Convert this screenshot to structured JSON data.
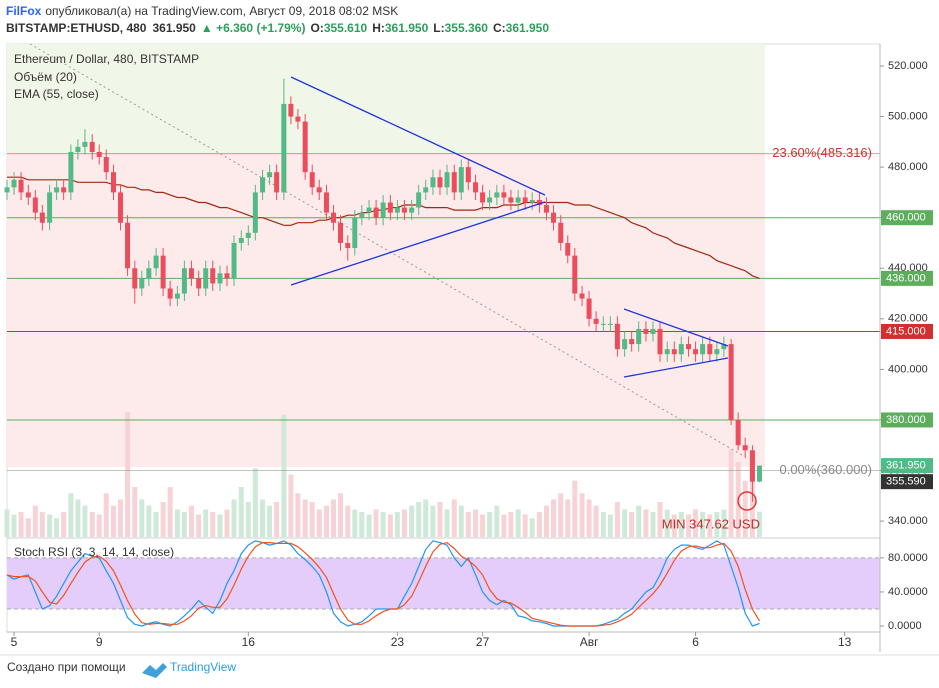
{
  "header": {
    "author": "FilFox",
    "published": "опубликовал(а) на TradingView.com, Август 09, 2018 08:02 MSK",
    "symbol": "BITSTAMP:ETHUSD, 480",
    "last": "361.950",
    "change": "▲ +6.360 (+1.79%)",
    "ohlc": [
      {
        "label": "O:",
        "value": "355.610"
      },
      {
        "label": "H:",
        "value": "361.950"
      },
      {
        "label": "L:",
        "value": "355.360"
      },
      {
        "label": "C:",
        "value": "361.950"
      }
    ]
  },
  "chart_data": [
    {
      "type": "candlestick",
      "title": "Ethereum / Dollar, 480, BITSTAMP",
      "up_color": "#53b987",
      "down_color": "#eb4d5c",
      "x": [
        4.67,
        5,
        5.33,
        5.67,
        6,
        6.33,
        6.67,
        7,
        7.33,
        7.67,
        8,
        8.33,
        8.67,
        9,
        9.33,
        9.67,
        10,
        10.33,
        10.67,
        11,
        11.33,
        11.67,
        12,
        12.33,
        12.67,
        13,
        13.33,
        13.67,
        14,
        14.33,
        14.67,
        15,
        15.33,
        15.67,
        16,
        16.33,
        16.67,
        17,
        17.33,
        17.67,
        18,
        18.33,
        18.67,
        19,
        19.33,
        19.67,
        20,
        20.33,
        20.67,
        21,
        21.33,
        21.67,
        22,
        22.33,
        22.67,
        23,
        23.33,
        23.67,
        24,
        24.33,
        24.67,
        25,
        25.33,
        25.67,
        26,
        26.33,
        26.67,
        27,
        27.33,
        27.67,
        28,
        28.33,
        28.67,
        29,
        29.33,
        29.67,
        30,
        30.33,
        30.67,
        31,
        31.33,
        31.67,
        32,
        32.33,
        32.67,
        33,
        33.33,
        33.67,
        34,
        34.33,
        34.67,
        35,
        35.33,
        35.67,
        36,
        36.33,
        36.67,
        37,
        37.33,
        37.67,
        38,
        38.33,
        38.67,
        39,
        39.33,
        39.67,
        40
      ],
      "open": [
        470,
        472,
        475,
        470,
        468,
        462,
        458,
        470,
        472,
        470,
        486,
        488,
        490,
        486,
        484,
        478,
        470,
        458,
        440,
        432,
        436,
        440,
        445,
        432,
        428,
        430,
        440,
        436,
        432,
        440,
        434,
        438,
        436,
        450,
        452,
        454,
        470,
        476,
        478,
        470,
        505,
        500,
        498,
        478,
        472,
        470,
        462,
        458,
        450,
        448,
        460,
        462,
        464,
        460,
        466,
        462,
        464,
        462,
        464,
        470,
        472,
        476,
        472,
        478,
        470,
        480,
        474,
        470,
        466,
        468,
        470,
        468,
        466,
        468,
        466,
        467,
        465,
        462,
        458,
        450,
        445,
        430,
        428,
        420,
        418,
        418,
        418,
        408,
        412,
        410,
        416,
        414,
        416,
        406,
        408,
        406,
        410,
        408,
        406,
        410,
        406,
        408,
        410,
        380,
        370,
        368,
        355.61
      ],
      "high": [
        475,
        478,
        478,
        473,
        471,
        465,
        473,
        475,
        475,
        489,
        491,
        495,
        493,
        489,
        487,
        481,
        473,
        461,
        443,
        439,
        443,
        448,
        448,
        435,
        433,
        443,
        443,
        439,
        443,
        443,
        441,
        441,
        453,
        455,
        457,
        473,
        479,
        481,
        481,
        515,
        508,
        503,
        501,
        481,
        475,
        473,
        465,
        461,
        453,
        463,
        465,
        467,
        467,
        469,
        469,
        467,
        467,
        467,
        473,
        475,
        479,
        479,
        481,
        481,
        483,
        483,
        477,
        473,
        471,
        473,
        473,
        471,
        471,
        471,
        470,
        470,
        468,
        465,
        461,
        453,
        448,
        433,
        431,
        423,
        421,
        421,
        421,
        415,
        415,
        419,
        419,
        419,
        419,
        411,
        411,
        413,
        413,
        411,
        413,
        413,
        411,
        413,
        412,
        383,
        373,
        370,
        361.95
      ],
      "low": [
        467,
        469,
        467,
        465,
        459,
        455,
        455,
        467,
        467,
        467,
        483,
        485,
        483,
        481,
        475,
        467,
        455,
        437,
        426,
        429,
        433,
        437,
        429,
        425,
        425,
        427,
        433,
        429,
        429,
        431,
        431,
        433,
        433,
        447,
        449,
        451,
        467,
        473,
        467,
        467,
        497,
        495,
        475,
        469,
        467,
        459,
        455,
        447,
        443,
        445,
        457,
        459,
        457,
        457,
        459,
        459,
        459,
        459,
        461,
        467,
        469,
        469,
        469,
        467,
        467,
        471,
        467,
        463,
        463,
        465,
        465,
        463,
        463,
        463,
        463,
        462,
        459,
        455,
        447,
        442,
        427,
        425,
        417,
        415,
        415,
        415,
        405,
        405,
        407,
        407,
        411,
        411,
        403,
        403,
        403,
        403,
        405,
        403,
        403,
        403,
        403,
        405,
        378,
        368,
        365,
        347.62,
        355.36
      ],
      "close": [
        472,
        475,
        470,
        468,
        462,
        458,
        470,
        472,
        470,
        486,
        488,
        490,
        486,
        484,
        478,
        470,
        458,
        440,
        432,
        436,
        440,
        445,
        432,
        428,
        430,
        440,
        436,
        432,
        440,
        434,
        438,
        436,
        450,
        452,
        454,
        470,
        476,
        478,
        470,
        505,
        500,
        498,
        478,
        472,
        470,
        462,
        458,
        450,
        448,
        460,
        462,
        464,
        460,
        466,
        462,
        464,
        462,
        464,
        470,
        472,
        476,
        472,
        478,
        470,
        480,
        474,
        470,
        466,
        468,
        470,
        468,
        466,
        468,
        466,
        467,
        465,
        462,
        458,
        450,
        445,
        430,
        428,
        420,
        418,
        418,
        418,
        408,
        412,
        410,
        416,
        414,
        416,
        406,
        408,
        406,
        410,
        408,
        406,
        410,
        406,
        408,
        410,
        380,
        370,
        368,
        355.61,
        361.95
      ],
      "xlim": [
        4.67,
        45.66
      ],
      "xticks": [
        5,
        9,
        16,
        23,
        27,
        {
          "value": 32,
          "label": "Авг"
        },
        {
          "value": 37,
          "label": "6"
        },
        {
          "value": 44,
          "label": "13"
        }
      ],
      "ylim": [
        333.7,
        528.7
      ],
      "yticks": [
        {
          "value": 340,
          "label": "340.000"
        },
        {
          "value": 360,
          "label": "360.000"
        },
        {
          "value": 380,
          "label": "380.000"
        },
        {
          "value": 400,
          "label": "400.000"
        },
        {
          "value": 420,
          "label": "420.000"
        },
        {
          "value": 440,
          "label": "440.000"
        },
        {
          "value": 460,
          "label": "460.000"
        },
        {
          "value": 480,
          "label": "480.000"
        },
        {
          "value": 500,
          "label": "500.000"
        },
        {
          "value": 520,
          "label": "520.000"
        }
      ],
      "volume": {
        "name": "Объём (20)",
        "ylim": [
          0,
          100
        ],
        "up_color": "#cfe9d9",
        "down_color": "#f7d3d6",
        "values": [
          22,
          18,
          20,
          15,
          25,
          20,
          18,
          15,
          20,
          35,
          30,
          25,
          20,
          18,
          35,
          25,
          30,
          100,
          40,
          30,
          25,
          20,
          28,
          40,
          22,
          20,
          25,
          18,
          22,
          20,
          18,
          22,
          30,
          40,
          28,
          55,
          30,
          25,
          28,
          98,
          50,
          35,
          30,
          28,
          22,
          25,
          30,
          35,
          25,
          22,
          20,
          18,
          22,
          20,
          18,
          20,
          22,
          25,
          28,
          30,
          25,
          28,
          22,
          30,
          25,
          20,
          22,
          18,
          20,
          25,
          18,
          20,
          22,
          18,
          15,
          20,
          25,
          30,
          35,
          30,
          45,
          35,
          30,
          25,
          20,
          18,
          28,
          22,
          20,
          25,
          22,
          20,
          28,
          22,
          18,
          20,
          18,
          22,
          20,
          18,
          20,
          22,
          70,
          60,
          45,
          55,
          20
        ]
      },
      "ema": {
        "name": "EMA (55, close)",
        "color": "#a52714",
        "values": [
          476,
          476,
          476,
          475,
          475,
          475,
          475,
          475,
          475,
          475,
          474,
          474,
          474,
          474,
          474,
          473,
          473,
          472,
          472,
          471,
          471,
          470,
          470,
          469,
          468,
          468,
          467,
          466,
          466,
          465,
          464,
          464,
          463,
          462,
          461,
          460,
          460,
          459,
          458,
          457,
          457,
          458,
          458,
          458,
          459,
          459,
          460,
          460,
          461,
          461,
          462,
          462,
          463,
          463,
          464,
          464,
          465,
          465,
          465,
          464,
          464,
          464,
          464,
          463,
          463,
          463,
          463,
          464,
          464,
          464,
          465,
          465,
          465,
          466,
          466,
          466,
          466,
          466,
          466,
          466,
          465,
          465,
          465,
          464,
          463,
          462,
          461,
          460,
          458,
          457,
          456,
          454,
          453,
          452,
          450,
          449,
          448,
          447,
          446,
          445,
          443,
          442,
          441,
          440,
          439,
          437,
          436
        ]
      },
      "levels": [
        {
          "value": 460,
          "label": "460.000",
          "color": "#5cad5c"
        },
        {
          "value": 436,
          "label": "436.000",
          "color": "#5cad5c"
        },
        {
          "value": 415,
          "label": "415.000",
          "color": "#d32f2f"
        },
        {
          "value": 380,
          "label": "380.000",
          "color": "#5cad5c"
        }
      ],
      "fib": [
        {
          "value": 485.316,
          "label": "23.60%(485.316)",
          "color": "#d32f2f"
        },
        {
          "value": 360,
          "label": "0.00%(360.000)",
          "color": "#888888"
        }
      ],
      "price_tags": [
        {
          "value": 361.95,
          "label": "361.950",
          "color": "#53b987"
        },
        {
          "value": 355.59,
          "label": "355.590",
          "color": "#333333"
        }
      ],
      "annotation": "MIN 347.62 USD"
    },
    {
      "type": "line",
      "title": "Stoch RSI (3, 3, 14, 14, close)",
      "ylim": [
        -7,
        101
      ],
      "band": [
        20,
        80
      ],
      "band_color": "#e4cdfa",
      "yticks": [
        {
          "value": 0,
          "label": "0.0000"
        },
        {
          "value": 40,
          "label": "40.0000"
        },
        {
          "value": 80,
          "label": "80.0000"
        }
      ],
      "series": [
        {
          "color": "#2196f3",
          "values": [
            60,
            55,
            58,
            60,
            40,
            20,
            24,
            35,
            50,
            65,
            75,
            85,
            82,
            80,
            65,
            50,
            30,
            10,
            2,
            0,
            3,
            5,
            2,
            0,
            5,
            12,
            20,
            30,
            22,
            15,
            30,
            50,
            65,
            85,
            95,
            100,
            98,
            95,
            97,
            100,
            95,
            85,
            78,
            70,
            60,
            40,
            15,
            5,
            0,
            2,
            5,
            12,
            20,
            20,
            20,
            20,
            35,
            50,
            70,
            90,
            100,
            98,
            95,
            80,
            70,
            80,
            60,
            40,
            30,
            25,
            30,
            25,
            12,
            10,
            6,
            5,
            3,
            0,
            0,
            0,
            0,
            0,
            0,
            0,
            2,
            5,
            8,
            15,
            20,
            30,
            40,
            45,
            60,
            80,
            90,
            95,
            95,
            92,
            90,
            95,
            100,
            95,
            70,
            45,
            15,
            0,
            3
          ]
        },
        {
          "color": "#f4511e",
          "values": [
            60,
            58,
            58,
            58,
            53,
            40,
            28,
            26,
            36,
            50,
            63,
            75,
            81,
            82,
            76,
            65,
            48,
            30,
            14,
            4,
            2,
            3,
            3,
            2,
            2,
            6,
            12,
            21,
            24,
            22,
            22,
            32,
            48,
            67,
            82,
            93,
            98,
            98,
            97,
            97,
            97,
            93,
            86,
            78,
            69,
            57,
            38,
            20,
            7,
            2,
            2,
            6,
            12,
            17,
            20,
            20,
            25,
            35,
            52,
            70,
            87,
            96,
            98,
            91,
            82,
            77,
            70,
            60,
            43,
            32,
            28,
            27,
            22,
            16,
            9,
            7,
            5,
            3,
            1,
            0,
            0,
            0,
            0,
            0,
            1,
            2,
            5,
            9,
            14,
            22,
            30,
            38,
            48,
            62,
            77,
            88,
            93,
            94,
            92,
            92,
            95,
            97,
            88,
            70,
            43,
            20,
            6
          ]
        }
      ]
    }
  ],
  "footer": {
    "created_with": "Создано при помощи",
    "brand": "TradingView"
  }
}
